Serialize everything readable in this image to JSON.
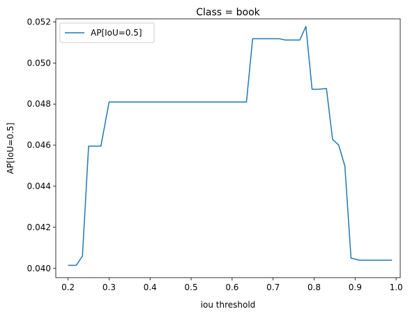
{
  "chart_data": {
    "type": "line",
    "title": "Class = book",
    "xlabel": "iou threshold",
    "ylabel": "AP[IoU=0.5]",
    "xlim": [
      0.17,
      1.01
    ],
    "ylim": [
      0.03955,
      0.05215
    ],
    "xticks": [
      "0.2",
      "0.3",
      "0.4",
      "0.5",
      "0.6",
      "0.7",
      "0.8",
      "0.9",
      "1.0"
    ],
    "yticks": [
      "0.040",
      "0.042",
      "0.044",
      "0.046",
      "0.048",
      "0.050",
      "0.052"
    ],
    "grid": false,
    "legend_position": "upper left",
    "series": [
      {
        "name": "AP[IoU=0.5]",
        "color": "#1f77b4",
        "x": [
          0.2,
          0.22,
          0.235,
          0.25,
          0.28,
          0.3,
          0.35,
          0.4,
          0.45,
          0.5,
          0.55,
          0.6,
          0.635,
          0.65,
          0.7,
          0.715,
          0.73,
          0.765,
          0.78,
          0.795,
          0.81,
          0.83,
          0.845,
          0.86,
          0.875,
          0.89,
          0.91,
          0.95,
          0.99
        ],
        "y": [
          0.04015,
          0.04015,
          0.0406,
          0.04595,
          0.04595,
          0.0481,
          0.0481,
          0.0481,
          0.0481,
          0.0481,
          0.0481,
          0.0481,
          0.0481,
          0.05118,
          0.05118,
          0.05118,
          0.05112,
          0.05112,
          0.05178,
          0.04872,
          0.04872,
          0.04876,
          0.04628,
          0.046,
          0.04498,
          0.0405,
          0.0404,
          0.0404,
          0.0404
        ]
      }
    ]
  }
}
